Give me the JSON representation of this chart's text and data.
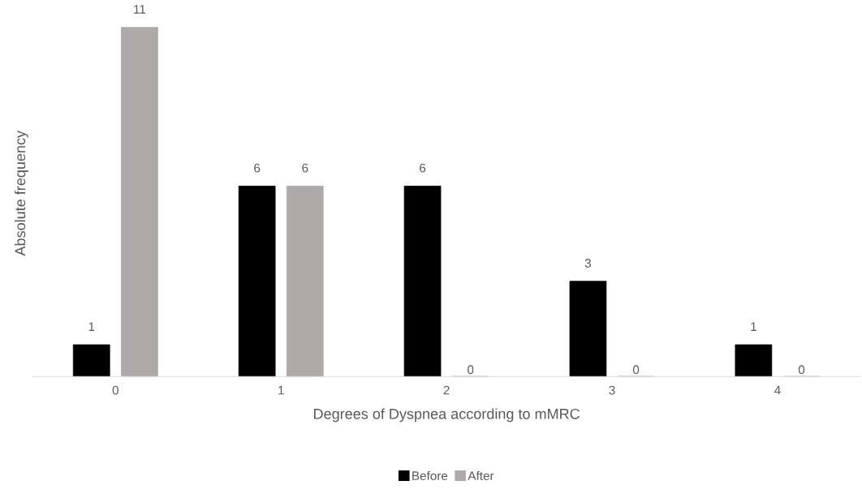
{
  "chart_data": {
    "type": "bar",
    "xlabel": "Degrees of Dyspnea according to mMRC",
    "ylabel": "Absolute frequency",
    "categories": [
      "0",
      "1",
      "2",
      "3",
      "4"
    ],
    "series": [
      {
        "name": "Before",
        "color": "#000000",
        "values": [
          1,
          6,
          6,
          3,
          1
        ]
      },
      {
        "name": "After",
        "color": "#aeaaaa",
        "values": [
          11,
          6,
          0,
          0,
          0
        ]
      }
    ],
    "tick_labels": "x",
    "data_labels": true,
    "grid": false,
    "legend": "bottom"
  }
}
